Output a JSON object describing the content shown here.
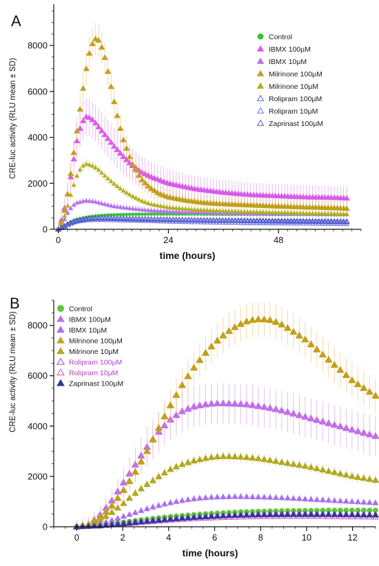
{
  "figure": {
    "panels": [
      "A",
      "B"
    ]
  },
  "chart_data": [
    {
      "panel": "A",
      "type": "scatter",
      "xlabel": "time (hours)",
      "ylabel": "CRE-luc activity (RLU mean ± SD)",
      "xlim": [
        -1,
        66
      ],
      "ylim": [
        0,
        9800
      ],
      "xticks": [
        0,
        24,
        48
      ],
      "yticks": [
        0,
        2000,
        4000,
        6000,
        8000
      ],
      "xminor_step": 2,
      "yminor_step": 500,
      "legend_position": "top-right",
      "series": [
        {
          "name": "Control",
          "color": "#3cc13a",
          "marker": "circle",
          "filled": true,
          "size": 4,
          "x": [
            0,
            1,
            2,
            3,
            4,
            6,
            8,
            10,
            12,
            16,
            20,
            24,
            30,
            36,
            42,
            48,
            54,
            60,
            63
          ],
          "y": [
            0,
            120,
            250,
            360,
            430,
            520,
            580,
            610,
            630,
            650,
            660,
            660,
            660,
            650,
            650,
            640,
            640,
            630,
            630
          ],
          "sd": 80
        },
        {
          "name": "IBMX 100µM",
          "color": "#d85ce8",
          "marker": "triangle",
          "filled": true,
          "size": 7,
          "x": [
            0,
            1,
            2,
            3,
            4,
            5,
            6,
            7,
            8,
            9,
            10,
            12,
            14,
            16,
            18,
            20,
            24,
            30,
            36,
            42,
            48,
            54,
            60,
            63
          ],
          "y": [
            0,
            600,
            1500,
            2600,
            3800,
            4600,
            4900,
            4850,
            4650,
            4400,
            4150,
            3650,
            3200,
            2800,
            2500,
            2300,
            2000,
            1750,
            1600,
            1500,
            1450,
            1400,
            1380,
            1350
          ],
          "sd": 800
        },
        {
          "name": "IBMX 10µM",
          "color": "#b573f0",
          "marker": "triangle",
          "filled": true,
          "size": 5,
          "x": [
            0,
            1,
            2,
            3,
            4,
            6,
            8,
            10,
            12,
            16,
            20,
            24,
            30,
            36,
            42,
            48,
            54,
            60,
            63
          ],
          "y": [
            0,
            300,
            700,
            1000,
            1150,
            1250,
            1200,
            1100,
            1000,
            900,
            820,
            780,
            740,
            710,
            690,
            680,
            670,
            660,
            650
          ],
          "sd": 150
        },
        {
          "name": "Milrinone 100µM",
          "color": "#c2a01c",
          "marker": "triangle",
          "filled": true,
          "size": 7,
          "x": [
            0,
            1,
            2,
            3,
            4,
            5,
            6,
            7,
            8,
            9,
            10,
            11,
            12,
            13,
            14,
            16,
            18,
            20,
            22,
            24,
            28,
            32,
            36,
            42,
            48,
            54,
            60,
            63
          ],
          "y": [
            0,
            450,
            1500,
            2800,
            4200,
            5600,
            6900,
            7900,
            8300,
            8200,
            7600,
            6700,
            5700,
            4800,
            4000,
            2900,
            2200,
            1800,
            1550,
            1400,
            1250,
            1150,
            1100,
            1050,
            1000,
            960,
            930,
            900
          ],
          "sd": 700,
          "sd_color": "#f0a83a"
        },
        {
          "name": "Milrinone 10µM",
          "color": "#b0b020",
          "marker": "triangle",
          "filled": true,
          "size": 5,
          "x": [
            0,
            1,
            2,
            3,
            4,
            5,
            6,
            7,
            8,
            9,
            10,
            12,
            14,
            16,
            18,
            20,
            24,
            30,
            36,
            42,
            48,
            54,
            60,
            63
          ],
          "y": [
            0,
            350,
            1000,
            1700,
            2300,
            2700,
            2850,
            2800,
            2700,
            2550,
            2350,
            2000,
            1700,
            1450,
            1250,
            1100,
            950,
            850,
            800,
            760,
            730,
            700,
            680,
            660
          ],
          "sd": 200
        },
        {
          "name": "Rolipram 100µM",
          "color": "#4a62e0",
          "marker": "triangle",
          "filled": false,
          "size": 6,
          "x": [
            0,
            1,
            2,
            3,
            4,
            6,
            8,
            10,
            12,
            16,
            20,
            24,
            30,
            36,
            42,
            48,
            54,
            60,
            63
          ],
          "y": [
            0,
            110,
            230,
            330,
            400,
            470,
            500,
            500,
            490,
            470,
            450,
            430,
            400,
            380,
            360,
            340,
            330,
            320,
            310
          ],
          "sd": 100
        },
        {
          "name": "Rolipram 10µM",
          "color": "#6a73e8",
          "marker": "triangle",
          "filled": false,
          "size": 5,
          "x": [
            0,
            1,
            2,
            3,
            4,
            6,
            8,
            10,
            12,
            16,
            20,
            24,
            30,
            36,
            42,
            48,
            54,
            60,
            63
          ],
          "y": [
            0,
            90,
            180,
            260,
            320,
            380,
            400,
            400,
            390,
            370,
            350,
            330,
            300,
            280,
            260,
            250,
            240,
            230,
            220
          ],
          "sd": 80
        },
        {
          "name": "Zaprinast 100µM",
          "color": "#5257c8",
          "marker": "triangle",
          "filled": false,
          "size": 7,
          "x": [
            0,
            1,
            2,
            3,
            4,
            6,
            8,
            10,
            12,
            16,
            20,
            24,
            30,
            36,
            42,
            48,
            54,
            60,
            63
          ],
          "y": [
            0,
            100,
            200,
            300,
            380,
            450,
            480,
            480,
            470,
            450,
            430,
            420,
            400,
            390,
            380,
            370,
            360,
            350,
            340
          ],
          "sd": 90
        }
      ]
    },
    {
      "panel": "B",
      "type": "scatter",
      "xlabel": "time (hours)",
      "ylabel": "CRE-luc activity (RLU mean ± SD)",
      "xlim": [
        -1,
        13
      ],
      "ylim": [
        0,
        9000
      ],
      "xticks": [
        0,
        2,
        4,
        6,
        8,
        10,
        12
      ],
      "yticks": [
        0,
        2000,
        4000,
        6000,
        8000
      ],
      "xminor_step": 0.5,
      "yminor_step": 500,
      "legend_position": "top-left",
      "series": [
        {
          "name": "Control",
          "color": "#5fc83a",
          "label_color": "#1a1a1a",
          "marker": "circle",
          "filled": true,
          "size": 7,
          "x": [
            0,
            1,
            2,
            3,
            4,
            5,
            6,
            7,
            8,
            9,
            10,
            11,
            12,
            13
          ],
          "y": [
            0,
            60,
            170,
            290,
            390,
            470,
            530,
            580,
            610,
            630,
            640,
            650,
            650,
            650
          ],
          "sd": 80
        },
        {
          "name": "IBMX 100µM",
          "color": "#c070e8",
          "label_color": "#1a1a1a",
          "marker": "triangle",
          "filled": true,
          "size": 9,
          "x": [
            0,
            0.5,
            1,
            1.5,
            2,
            2.5,
            3,
            3.5,
            4,
            4.5,
            5,
            5.5,
            6,
            6.5,
            7,
            7.5,
            8,
            8.5,
            9,
            10,
            11,
            12,
            13
          ],
          "y": [
            0,
            80,
            450,
            1000,
            1700,
            2400,
            3100,
            3700,
            4200,
            4550,
            4750,
            4850,
            4900,
            4900,
            4880,
            4850,
            4780,
            4700,
            4600,
            4350,
            4100,
            3850,
            3600
          ],
          "sd": 800
        },
        {
          "name": "IBMX 10µM",
          "color": "#a870ee",
          "label_color": "#1a1a1a",
          "marker": "triangle",
          "filled": true,
          "size": 7,
          "x": [
            0,
            0.5,
            1,
            1.5,
            2,
            2.5,
            3,
            3.5,
            4,
            4.5,
            5,
            5.5,
            6,
            7,
            8,
            9,
            10,
            11,
            12,
            13
          ],
          "y": [
            0,
            30,
            120,
            250,
            400,
            550,
            700,
            830,
            940,
            1030,
            1100,
            1150,
            1180,
            1200,
            1180,
            1150,
            1100,
            1050,
            1000,
            950
          ],
          "sd": 150
        },
        {
          "name": "Milrinone 100µM",
          "color": "#c2a01c",
          "label_color": "#1a1a1a",
          "marker": "triangle",
          "filled": true,
          "size": 9,
          "x": [
            0,
            0.5,
            1,
            1.5,
            2,
            2.5,
            3,
            3.5,
            4,
            4.5,
            5,
            5.5,
            6,
            6.5,
            7,
            7.5,
            8,
            8.5,
            9,
            9.5,
            10,
            10.5,
            11,
            11.5,
            12,
            12.5,
            13
          ],
          "y": [
            0,
            80,
            350,
            800,
            1400,
            2100,
            2900,
            3800,
            4700,
            5500,
            6200,
            6800,
            7300,
            7700,
            8000,
            8200,
            8250,
            8200,
            8000,
            7700,
            7400,
            7000,
            6600,
            6200,
            5800,
            5500,
            5200
          ],
          "sd": 700,
          "sd_color": "#f0a83a"
        },
        {
          "name": "Milrinone 10µM",
          "color": "#b0a81e",
          "label_color": "#1a1a1a",
          "marker": "triangle",
          "filled": true,
          "size": 8,
          "x": [
            0,
            0.5,
            1,
            1.5,
            2,
            2.5,
            3,
            3.5,
            4,
            4.5,
            5,
            5.5,
            6,
            6.5,
            7,
            7.5,
            8,
            9,
            10,
            11,
            12,
            13
          ],
          "y": [
            0,
            60,
            250,
            550,
            900,
            1300,
            1650,
            1950,
            2250,
            2450,
            2600,
            2700,
            2780,
            2800,
            2780,
            2750,
            2700,
            2550,
            2400,
            2200,
            2000,
            1850
          ],
          "sd": 200
        },
        {
          "name": "Rolipram 100µM",
          "color": "#b040d0",
          "label_color": "#b040d0",
          "marker": "triangle",
          "filled": false,
          "size": 8,
          "x": [
            0,
            1,
            2,
            3,
            4,
            5,
            6,
            7,
            8,
            9,
            10,
            11,
            12,
            13
          ],
          "y": [
            0,
            40,
            130,
            230,
            310,
            380,
            430,
            470,
            500,
            510,
            510,
            500,
            490,
            480
          ],
          "sd": 80
        },
        {
          "name": "Rolipram 10µM",
          "color": "#d04fc8",
          "label_color": "#b040b8",
          "marker": "triangle",
          "filled": false,
          "size": 7,
          "x": [
            0,
            1,
            2,
            3,
            4,
            5,
            6,
            7,
            8,
            9,
            10,
            11,
            12,
            13
          ],
          "y": [
            0,
            30,
            100,
            180,
            250,
            310,
            350,
            380,
            400,
            410,
            410,
            400,
            390,
            380
          ],
          "sd": 70
        },
        {
          "name": "Zaprinast 100µM",
          "color": "#2a3a9a",
          "label_color": "#1a1a1a",
          "marker": "triangle",
          "filled": true,
          "size": 7,
          "x": [
            0,
            1,
            2,
            3,
            4,
            5,
            6,
            7,
            8,
            9,
            10,
            11,
            12,
            13
          ],
          "y": [
            0,
            40,
            120,
            210,
            290,
            360,
            410,
            450,
            470,
            480,
            480,
            480,
            470,
            460
          ],
          "sd": 70
        }
      ]
    }
  ]
}
